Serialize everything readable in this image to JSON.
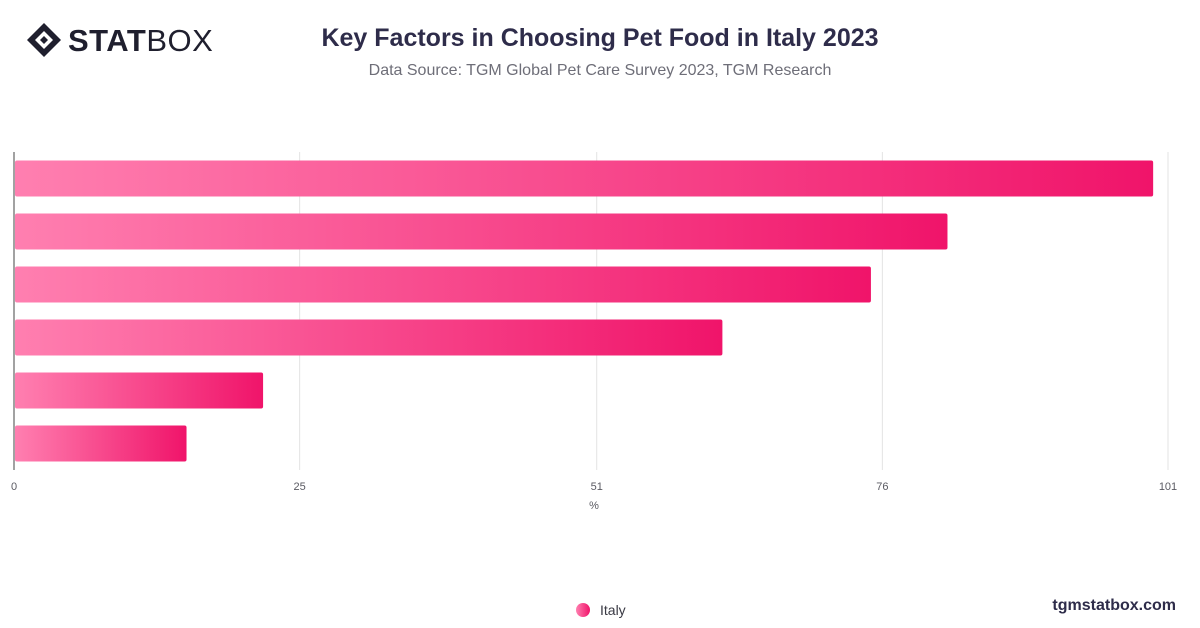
{
  "header": {
    "logo_bold": "STAT",
    "logo_light": "BOX",
    "title": "Key Factors in Choosing Pet Food in Italy 2023",
    "subtitle": "Data Source: TGM Global Pet Care Survey 2023, TGM Research"
  },
  "footer": {
    "watermark": "tgmstatbox.com"
  },
  "colors": {
    "bar_start": "#ff7fb0",
    "bar_end": "#f0146a",
    "title": "#2e2c4a"
  },
  "chart_data": {
    "type": "bar",
    "orientation": "horizontal",
    "categories": [
      "",
      "",
      "",
      "",
      "",
      ""
    ],
    "series": [
      {
        "name": "Italy",
        "values": [
          99.7,
          81.7,
          75.0,
          62.0,
          21.8,
          15.1
        ]
      }
    ],
    "xlabel": "%",
    "xlim": [
      0,
      101
    ],
    "xticks": [
      0,
      25,
      51,
      76,
      101
    ],
    "grid": true,
    "legend": "bottom-center"
  }
}
